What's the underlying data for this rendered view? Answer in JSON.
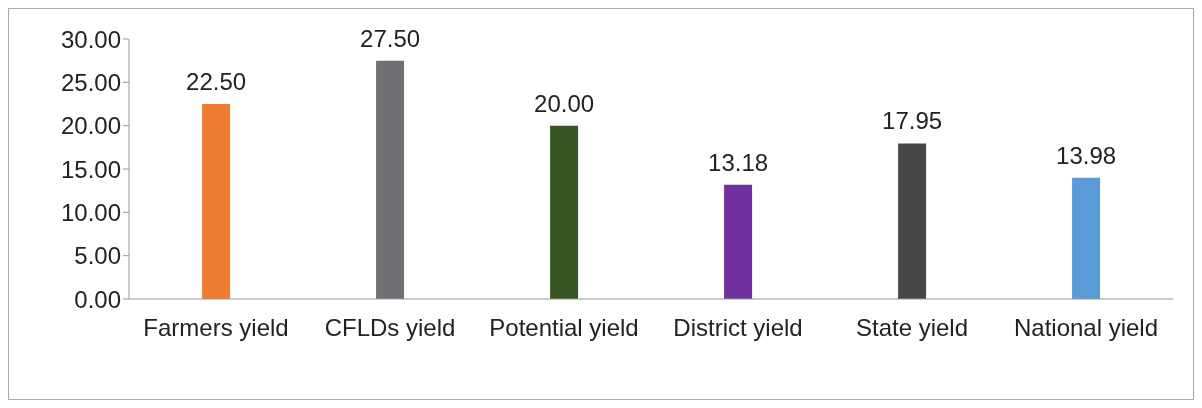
{
  "chart_data": {
    "type": "bar",
    "categories": [
      "Farmers yield",
      "CFLDs yield",
      "Potential yield",
      "District yield",
      "State yield",
      "National yield"
    ],
    "values": [
      22.5,
      27.5,
      20.0,
      13.18,
      17.95,
      13.98
    ],
    "value_labels": [
      "22.50",
      "27.50",
      "20.00",
      "13.18",
      "17.95",
      "13.98"
    ],
    "colors": [
      "#ed7d31",
      "#6f7073",
      "#375623",
      "#7030a0",
      "#464749",
      "#5b9bd5"
    ],
    "ylim": [
      0,
      30
    ],
    "yticks": [
      {
        "value": 0,
        "label": "0.00"
      },
      {
        "value": 5,
        "label": "5.00"
      },
      {
        "value": 10,
        "label": "10.00"
      },
      {
        "value": 15,
        "label": "15.00"
      },
      {
        "value": 20,
        "label": "20.00"
      },
      {
        "value": 25,
        "label": "25.00"
      },
      {
        "value": 30,
        "label": "30.00"
      }
    ],
    "grid": false,
    "legend": false
  }
}
